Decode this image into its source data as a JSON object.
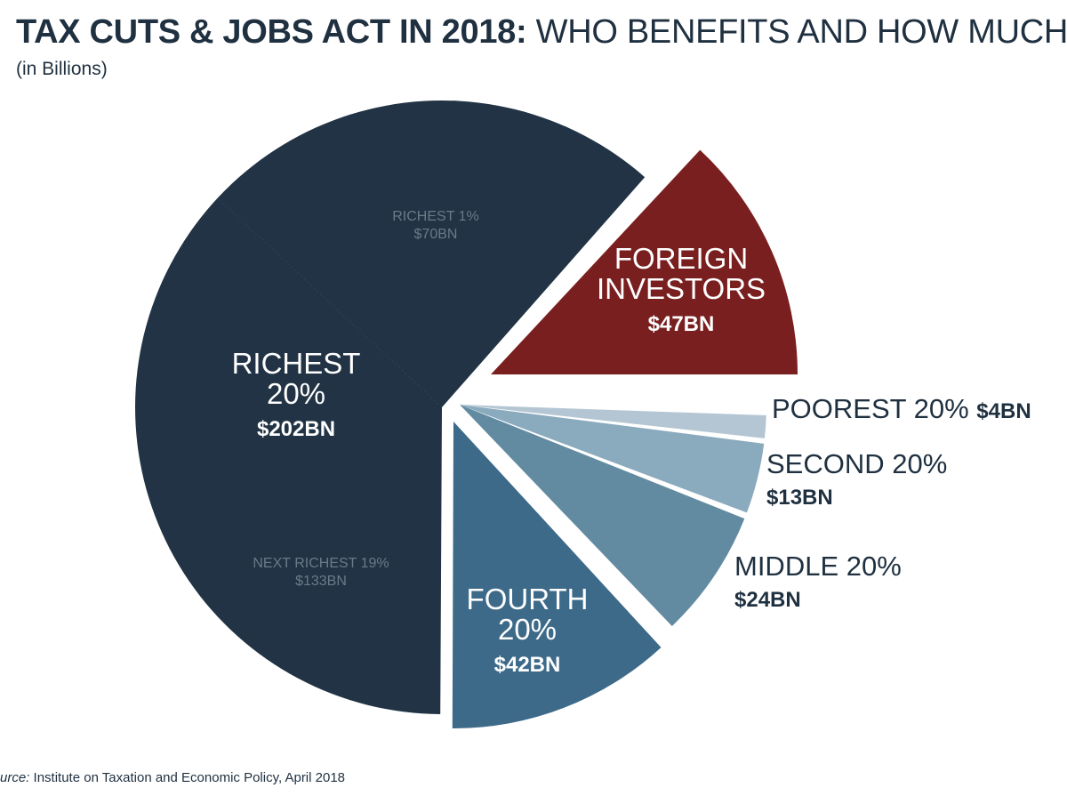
{
  "header": {
    "title_bold": "TAX CUTS & JOBS ACT IN 2018:",
    "title_rest": " WHO BENEFITS AND HOW MUCH",
    "subtitle": "(in Billions)"
  },
  "source": {
    "label": "urce:",
    "text": " Institute on Taxation and Economic Policy, April 2018"
  },
  "chart_data": {
    "type": "pie",
    "title": "TAX CUTS & JOBS ACT IN 2018: WHO BENEFITS AND HOW MUCH",
    "subtitle": "(in Billions)",
    "unit": "billions USD",
    "slices": [
      {
        "key": "richest20",
        "lines": [
          "RICHEST",
          "20%"
        ],
        "value_label": "$202BN",
        "value": 202,
        "color": "#213344",
        "sub_slices": [
          {
            "key": "next19",
            "lines": [
              "NEXT RICHEST 19%",
              "$133BN"
            ],
            "value": 133
          },
          {
            "key": "top1",
            "lines": [
              "RICHEST 1%",
              "$70BN"
            ],
            "value": 70
          }
        ]
      },
      {
        "key": "foreign",
        "lines": [
          "FOREIGN",
          "INVESTORS"
        ],
        "value_label": "$47BN",
        "value": 47,
        "color": "#7a1f1f"
      },
      {
        "key": "poorest",
        "lines": [
          "POOREST 20%"
        ],
        "value_label": "$4BN",
        "value": 4,
        "color": "#b4c6d3"
      },
      {
        "key": "second",
        "lines": [
          "SECOND 20%"
        ],
        "value_label": "$13BN",
        "value": 13,
        "color": "#8aaabd"
      },
      {
        "key": "middle",
        "lines": [
          "MIDDLE 20%"
        ],
        "value_label": "$24BN",
        "value": 24,
        "color": "#628ba1"
      },
      {
        "key": "fourth",
        "lines": [
          "FOURTH",
          "20%"
        ],
        "value_label": "$42BN",
        "value": 42,
        "color": "#3d6a89"
      }
    ]
  }
}
